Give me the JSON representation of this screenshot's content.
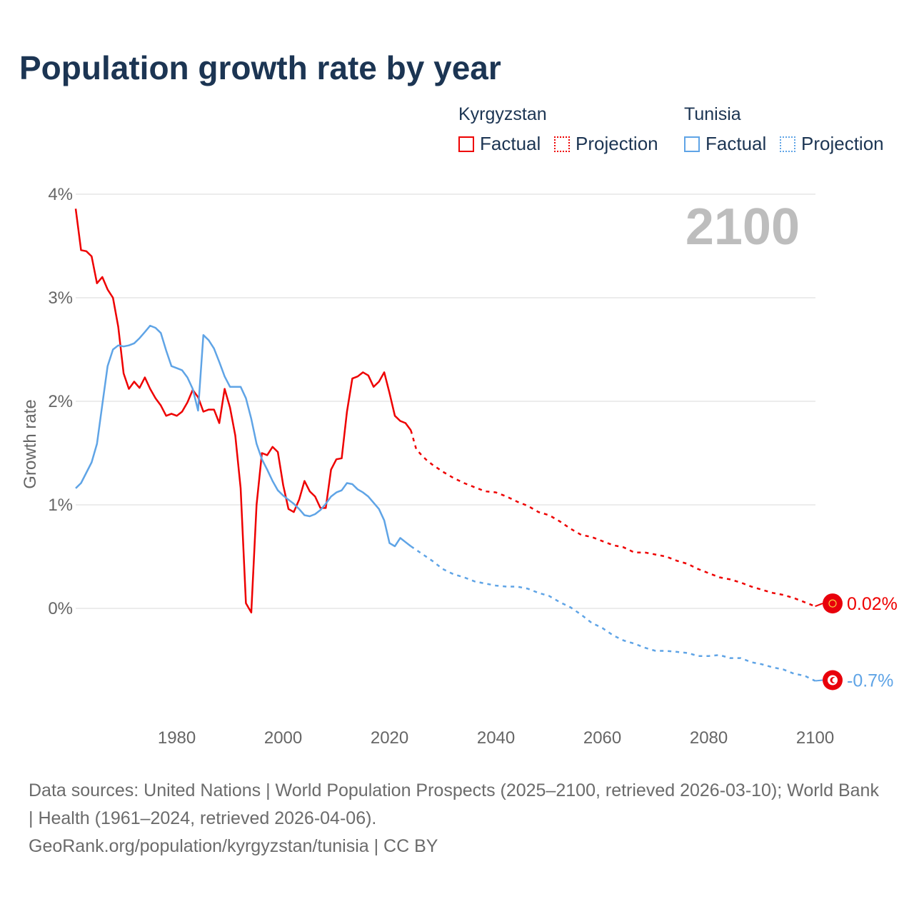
{
  "chart_data": {
    "type": "line",
    "title": "Population growth rate by year",
    "ylabel": "Growth rate",
    "xlabel": "",
    "xlim": [
      1961,
      2100
    ],
    "ylim": [
      -0.7,
      4
    ],
    "x_ticks": [
      1980,
      2000,
      2020,
      2040,
      2060,
      2080,
      2100
    ],
    "x_tick_labels": [
      "1980",
      "2000",
      "2020",
      "2040",
      "2060",
      "2080",
      "2100"
    ],
    "y_ticks": [
      0,
      1,
      2,
      3,
      4
    ],
    "y_tick_labels": [
      "0%",
      "1%",
      "2%",
      "3%",
      "4%"
    ],
    "grid": true,
    "current_year_label": "2100",
    "legend_placement": "top-right",
    "series": [
      {
        "name": "Kyrgyzstan",
        "color": "#ee0000",
        "end_label": "0.02%",
        "factual_label": "Factual",
        "projection_label": "Projection",
        "factual": [
          [
            1961,
            3.86
          ],
          [
            1962,
            3.46
          ],
          [
            1963,
            3.45
          ],
          [
            1964,
            3.4
          ],
          [
            1965,
            3.14
          ],
          [
            1966,
            3.2
          ],
          [
            1967,
            3.08
          ],
          [
            1968,
            3.0
          ],
          [
            1969,
            2.72
          ],
          [
            1970,
            2.27
          ],
          [
            1971,
            2.12
          ],
          [
            1972,
            2.19
          ],
          [
            1973,
            2.13
          ],
          [
            1974,
            2.23
          ],
          [
            1975,
            2.12
          ],
          [
            1976,
            2.03
          ],
          [
            1977,
            1.96
          ],
          [
            1978,
            1.86
          ],
          [
            1979,
            1.88
          ],
          [
            1980,
            1.86
          ],
          [
            1981,
            1.9
          ],
          [
            1982,
            1.99
          ],
          [
            1983,
            2.11
          ],
          [
            1984,
            2.04
          ],
          [
            1985,
            1.9
          ],
          [
            1986,
            1.92
          ],
          [
            1987,
            1.92
          ],
          [
            1988,
            1.79
          ],
          [
            1989,
            2.12
          ],
          [
            1990,
            1.94
          ],
          [
            1991,
            1.67
          ],
          [
            1992,
            1.16
          ],
          [
            1993,
            0.05
          ],
          [
            1994,
            -0.04
          ],
          [
            1995,
            1.0
          ],
          [
            1996,
            1.5
          ],
          [
            1997,
            1.48
          ],
          [
            1998,
            1.56
          ],
          [
            1999,
            1.51
          ],
          [
            2000,
            1.19
          ],
          [
            2001,
            0.96
          ],
          [
            2002,
            0.93
          ],
          [
            2003,
            1.05
          ],
          [
            2004,
            1.23
          ],
          [
            2005,
            1.13
          ],
          [
            2006,
            1.08
          ],
          [
            2007,
            0.97
          ],
          [
            2008,
            0.97
          ],
          [
            2009,
            1.34
          ],
          [
            2010,
            1.44
          ],
          [
            2011,
            1.45
          ],
          [
            2012,
            1.9
          ],
          [
            2013,
            2.22
          ],
          [
            2014,
            2.24
          ],
          [
            2015,
            2.28
          ],
          [
            2016,
            2.25
          ],
          [
            2017,
            2.14
          ],
          [
            2018,
            2.19
          ],
          [
            2019,
            2.28
          ],
          [
            2020,
            2.08
          ],
          [
            2021,
            1.86
          ],
          [
            2022,
            1.81
          ],
          [
            2023,
            1.79
          ],
          [
            2024,
            1.72
          ]
        ],
        "projection": [
          [
            2024,
            1.72
          ],
          [
            2025,
            1.54
          ],
          [
            2026,
            1.48
          ],
          [
            2027,
            1.43
          ],
          [
            2028,
            1.39
          ],
          [
            2030,
            1.32
          ],
          [
            2032,
            1.26
          ],
          [
            2034,
            1.21
          ],
          [
            2036,
            1.17
          ],
          [
            2038,
            1.13
          ],
          [
            2040,
            1.12
          ],
          [
            2042,
            1.08
          ],
          [
            2044,
            1.03
          ],
          [
            2046,
            0.99
          ],
          [
            2048,
            0.93
          ],
          [
            2050,
            0.9
          ],
          [
            2052,
            0.84
          ],
          [
            2054,
            0.77
          ],
          [
            2056,
            0.71
          ],
          [
            2058,
            0.69
          ],
          [
            2060,
            0.65
          ],
          [
            2062,
            0.61
          ],
          [
            2064,
            0.59
          ],
          [
            2066,
            0.54
          ],
          [
            2068,
            0.54
          ],
          [
            2070,
            0.52
          ],
          [
            2072,
            0.5
          ],
          [
            2074,
            0.46
          ],
          [
            2076,
            0.43
          ],
          [
            2078,
            0.38
          ],
          [
            2080,
            0.34
          ],
          [
            2082,
            0.3
          ],
          [
            2084,
            0.28
          ],
          [
            2086,
            0.25
          ],
          [
            2088,
            0.21
          ],
          [
            2090,
            0.18
          ],
          [
            2092,
            0.15
          ],
          [
            2094,
            0.13
          ],
          [
            2096,
            0.1
          ],
          [
            2098,
            0.06
          ],
          [
            2100,
            0.02
          ]
        ]
      },
      {
        "name": "Tunisia",
        "color": "#5fa4e6",
        "end_label": "-0.7%",
        "factual_label": "Factual",
        "projection_label": "Projection",
        "factual": [
          [
            1961,
            1.16
          ],
          [
            1962,
            1.21
          ],
          [
            1963,
            1.31
          ],
          [
            1964,
            1.41
          ],
          [
            1965,
            1.59
          ],
          [
            1966,
            1.97
          ],
          [
            1967,
            2.34
          ],
          [
            1968,
            2.5
          ],
          [
            1969,
            2.54
          ],
          [
            1970,
            2.53
          ],
          [
            1971,
            2.54
          ],
          [
            1972,
            2.56
          ],
          [
            1973,
            2.61
          ],
          [
            1974,
            2.67
          ],
          [
            1975,
            2.73
          ],
          [
            1976,
            2.71
          ],
          [
            1977,
            2.66
          ],
          [
            1978,
            2.49
          ],
          [
            1979,
            2.34
          ],
          [
            1980,
            2.32
          ],
          [
            1981,
            2.3
          ],
          [
            1982,
            2.23
          ],
          [
            1983,
            2.12
          ],
          [
            1984,
            1.91
          ],
          [
            1985,
            2.64
          ],
          [
            1986,
            2.59
          ],
          [
            1987,
            2.51
          ],
          [
            1988,
            2.38
          ],
          [
            1989,
            2.24
          ],
          [
            1990,
            2.14
          ],
          [
            1991,
            2.14
          ],
          [
            1992,
            2.14
          ],
          [
            1993,
            2.03
          ],
          [
            1994,
            1.83
          ],
          [
            1995,
            1.59
          ],
          [
            1996,
            1.44
          ],
          [
            1997,
            1.34
          ],
          [
            1998,
            1.23
          ],
          [
            1999,
            1.14
          ],
          [
            2000,
            1.09
          ],
          [
            2001,
            1.05
          ],
          [
            2002,
            1.01
          ],
          [
            2003,
            0.96
          ],
          [
            2004,
            0.9
          ],
          [
            2005,
            0.89
          ],
          [
            2006,
            0.91
          ],
          [
            2007,
            0.95
          ],
          [
            2008,
            1.01
          ],
          [
            2009,
            1.08
          ],
          [
            2010,
            1.12
          ],
          [
            2011,
            1.14
          ],
          [
            2012,
            1.21
          ],
          [
            2013,
            1.2
          ],
          [
            2014,
            1.15
          ],
          [
            2015,
            1.12
          ],
          [
            2016,
            1.08
          ],
          [
            2017,
            1.02
          ],
          [
            2018,
            0.96
          ],
          [
            2019,
            0.85
          ],
          [
            2020,
            0.63
          ],
          [
            2021,
            0.6
          ],
          [
            2022,
            0.68
          ],
          [
            2023,
            0.64
          ],
          [
            2024,
            0.6
          ]
        ],
        "projection": [
          [
            2024,
            0.6
          ],
          [
            2026,
            0.53
          ],
          [
            2028,
            0.46
          ],
          [
            2030,
            0.38
          ],
          [
            2032,
            0.33
          ],
          [
            2034,
            0.3
          ],
          [
            2036,
            0.26
          ],
          [
            2038,
            0.24
          ],
          [
            2040,
            0.22
          ],
          [
            2042,
            0.21
          ],
          [
            2044,
            0.21
          ],
          [
            2046,
            0.19
          ],
          [
            2048,
            0.15
          ],
          [
            2050,
            0.12
          ],
          [
            2052,
            0.06
          ],
          [
            2054,
            0.01
          ],
          [
            2056,
            -0.06
          ],
          [
            2058,
            -0.14
          ],
          [
            2060,
            -0.19
          ],
          [
            2062,
            -0.26
          ],
          [
            2064,
            -0.31
          ],
          [
            2066,
            -0.34
          ],
          [
            2068,
            -0.38
          ],
          [
            2070,
            -0.41
          ],
          [
            2072,
            -0.41
          ],
          [
            2074,
            -0.42
          ],
          [
            2076,
            -0.43
          ],
          [
            2078,
            -0.46
          ],
          [
            2080,
            -0.46
          ],
          [
            2082,
            -0.45
          ],
          [
            2084,
            -0.48
          ],
          [
            2086,
            -0.48
          ],
          [
            2088,
            -0.52
          ],
          [
            2090,
            -0.54
          ],
          [
            2092,
            -0.57
          ],
          [
            2094,
            -0.59
          ],
          [
            2096,
            -0.63
          ],
          [
            2098,
            -0.65
          ],
          [
            2100,
            -0.7
          ]
        ]
      }
    ]
  },
  "footer": {
    "sources": "Data sources: United Nations | World Population Prospects (2025–2100, retrieved 2026-03-10); World Bank | Health (1961–2024, retrieved 2026-04-06).",
    "link": "GeoRank.org/population/kyrgyzstan/tunisia | CC BY"
  }
}
